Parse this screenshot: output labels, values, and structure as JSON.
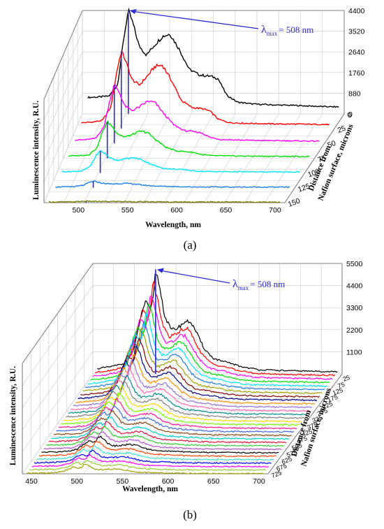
{
  "chart_data": [
    {
      "type": "line",
      "panel_label": "(a)",
      "xlabel": "Wavelength, nm",
      "ylabel": "Luminescence intensity, R.U.",
      "zlabel_line1": "Distance from",
      "zlabel_line2": "Nafion surface, microns",
      "x_ticks": [
        "500",
        "550",
        "600",
        "650",
        "700"
      ],
      "z_tick_labels": [
        "4400",
        "3520",
        "2640",
        "1760",
        "880",
        "0"
      ],
      "depth_tick_labels": [
        "0",
        "25",
        "50",
        "75",
        "100",
        "125",
        "150"
      ],
      "xlim": [
        465,
        710
      ],
      "zlim": [
        0,
        4400
      ],
      "annotation": {
        "lambda": "λ",
        "sub": "max",
        "text": "= 508 nm",
        "x": 508
      },
      "series": [
        {
          "depth": 0,
          "color": "#000000",
          "values": [
            [
              470,
              700
            ],
            [
              480,
              720
            ],
            [
              490,
              760
            ],
            [
              498,
              1250
            ],
            [
              504,
              3300
            ],
            [
              508,
              4400
            ],
            [
              512,
              3900
            ],
            [
              518,
              2900
            ],
            [
              525,
              2500
            ],
            [
              532,
              2900
            ],
            [
              540,
              3300
            ],
            [
              547,
              3400
            ],
            [
              555,
              2800
            ],
            [
              565,
              1900
            ],
            [
              575,
              1650
            ],
            [
              585,
              1600
            ],
            [
              592,
              1500
            ],
            [
              600,
              800
            ],
            [
              610,
              500
            ],
            [
              625,
              420
            ],
            [
              645,
              380
            ],
            [
              665,
              360
            ],
            [
              685,
              320
            ],
            [
              700,
              300
            ]
          ]
        },
        {
          "depth": 25,
          "color": "#ff0000",
          "values": [
            [
              470,
              250
            ],
            [
              480,
              280
            ],
            [
              490,
              350
            ],
            [
              498,
              900
            ],
            [
              504,
              2500
            ],
            [
              508,
              3300
            ],
            [
              512,
              2900
            ],
            [
              518,
              2100
            ],
            [
              525,
              1850
            ],
            [
              532,
              2200
            ],
            [
              540,
              2650
            ],
            [
              547,
              2700
            ],
            [
              555,
              2100
            ],
            [
              565,
              1200
            ],
            [
              575,
              900
            ],
            [
              585,
              850
            ],
            [
              592,
              750
            ],
            [
              600,
              400
            ],
            [
              610,
              260
            ],
            [
              625,
              230
            ],
            [
              645,
              210
            ],
            [
              665,
              200
            ],
            [
              685,
              190
            ],
            [
              700,
              180
            ]
          ]
        },
        {
          "depth": 50,
          "color": "#ff00ff",
          "values": [
            [
              470,
              150
            ],
            [
              480,
              160
            ],
            [
              490,
              220
            ],
            [
              498,
              700
            ],
            [
              504,
              1900
            ],
            [
              508,
              2500
            ],
            [
              512,
              2250
            ],
            [
              518,
              1600
            ],
            [
              525,
              1400
            ],
            [
              532,
              1550
            ],
            [
              540,
              1800
            ],
            [
              547,
              1750
            ],
            [
              555,
              1300
            ],
            [
              565,
              800
            ],
            [
              575,
              550
            ],
            [
              585,
              500
            ],
            [
              592,
              450
            ],
            [
              600,
              260
            ],
            [
              610,
              170
            ],
            [
              625,
              150
            ],
            [
              645,
              130
            ],
            [
              665,
              120
            ],
            [
              685,
              110
            ],
            [
              700,
              100
            ]
          ]
        },
        {
          "depth": 75,
          "color": "#00e000",
          "values": [
            [
              470,
              100
            ],
            [
              480,
              110
            ],
            [
              490,
              150
            ],
            [
              498,
              450
            ],
            [
              504,
              1200
            ],
            [
              508,
              1550
            ],
            [
              512,
              1400
            ],
            [
              518,
              1050
            ],
            [
              525,
              900
            ],
            [
              532,
              1000
            ],
            [
              540,
              1150
            ],
            [
              547,
              1100
            ],
            [
              555,
              800
            ],
            [
              565,
              470
            ],
            [
              575,
              320
            ],
            [
              585,
              280
            ],
            [
              592,
              250
            ],
            [
              600,
              160
            ],
            [
              610,
              110
            ],
            [
              625,
              100
            ],
            [
              645,
              90
            ],
            [
              665,
              85
            ],
            [
              685,
              80
            ],
            [
              700,
              75
            ]
          ]
        },
        {
          "depth": 100,
          "color": "#00e5ff",
          "values": [
            [
              470,
              60
            ],
            [
              480,
              65
            ],
            [
              490,
              90
            ],
            [
              498,
              280
            ],
            [
              504,
              750
            ],
            [
              508,
              950
            ],
            [
              512,
              850
            ],
            [
              518,
              630
            ],
            [
              525,
              550
            ],
            [
              532,
              600
            ],
            [
              540,
              650
            ],
            [
              547,
              600
            ],
            [
              555,
              440
            ],
            [
              565,
              260
            ],
            [
              575,
              180
            ],
            [
              585,
              160
            ],
            [
              592,
              140
            ],
            [
              600,
              90
            ],
            [
              610,
              70
            ],
            [
              625,
              60
            ],
            [
              645,
              55
            ],
            [
              665,
              50
            ],
            [
              685,
              48
            ],
            [
              700,
              45
            ]
          ]
        },
        {
          "depth": 125,
          "color": "#1e7fe0",
          "values": [
            [
              470,
              40
            ],
            [
              480,
              42
            ],
            [
              490,
              55
            ],
            [
              498,
              110
            ],
            [
              504,
              230
            ],
            [
              508,
              280
            ],
            [
              512,
              250
            ],
            [
              518,
              190
            ],
            [
              525,
              165
            ],
            [
              532,
              175
            ],
            [
              540,
              190
            ],
            [
              547,
              175
            ],
            [
              555,
              130
            ],
            [
              565,
              90
            ],
            [
              575,
              70
            ],
            [
              585,
              60
            ],
            [
              592,
              55
            ],
            [
              600,
              45
            ],
            [
              610,
              40
            ],
            [
              625,
              38
            ],
            [
              645,
              36
            ],
            [
              665,
              34
            ],
            [
              685,
              33
            ],
            [
              700,
              32
            ]
          ]
        },
        {
          "depth": 150,
          "color": "#808000",
          "values": [
            [
              470,
              30
            ],
            [
              480,
              30
            ],
            [
              490,
              32
            ],
            [
              498,
              40
            ],
            [
              504,
              55
            ],
            [
              508,
              62
            ],
            [
              512,
              58
            ],
            [
              518,
              50
            ],
            [
              525,
              46
            ],
            [
              532,
              48
            ],
            [
              540,
              50
            ],
            [
              547,
              48
            ],
            [
              555,
              42
            ],
            [
              565,
              36
            ],
            [
              575,
              34
            ],
            [
              585,
              32
            ],
            [
              592,
              31
            ],
            [
              600,
              30
            ],
            [
              610,
              30
            ],
            [
              625,
              29
            ],
            [
              645,
              29
            ],
            [
              665,
              28
            ],
            [
              685,
              28
            ],
            [
              700,
              28
            ]
          ]
        }
      ]
    },
    {
      "type": "line",
      "panel_label": "(b)",
      "xlabel": "Wavelength, nm",
      "ylabel": "Luminescence intensity, R.U.",
      "zlabel_line1": "Distance from",
      "zlabel_line2": "Nafion surface, microns",
      "x_ticks": [
        "450",
        "500",
        "550",
        "600",
        "650",
        "700"
      ],
      "z_tick_labels": [
        "5500",
        "4400",
        "3300",
        "2200",
        "1100"
      ],
      "depth_tick_labels": [
        "25",
        "75",
        "125",
        "175",
        "225",
        "275",
        "325",
        "375",
        "425",
        "475",
        "525",
        "575",
        "625",
        "675",
        "725"
      ],
      "xlim": [
        440,
        710
      ],
      "zlim": [
        0,
        5500
      ],
      "annotation": {
        "lambda": "λ",
        "sub": "max",
        "text": "= 508 nm",
        "x": 508
      },
      "peak_shape": [
        [
          445,
          0.05
        ],
        [
          460,
          0.07
        ],
        [
          475,
          0.1
        ],
        [
          485,
          0.25
        ],
        [
          492,
          0.55
        ],
        [
          497,
          0.7
        ],
        [
          502,
          0.6
        ],
        [
          505,
          0.7
        ],
        [
          508,
          1.0
        ],
        [
          512,
          0.85
        ],
        [
          518,
          0.55
        ],
        [
          525,
          0.42
        ],
        [
          532,
          0.44
        ],
        [
          540,
          0.5
        ],
        [
          546,
          0.5
        ],
        [
          552,
          0.4
        ],
        [
          560,
          0.25
        ],
        [
          570,
          0.15
        ],
        [
          580,
          0.12
        ],
        [
          590,
          0.1
        ],
        [
          600,
          0.07
        ],
        [
          620,
          0.04
        ],
        [
          650,
          0.03
        ],
        [
          680,
          0.025
        ],
        [
          705,
          0.02
        ]
      ],
      "series": [
        {
          "depth": 0,
          "color": "#000000",
          "peak": 5200
        },
        {
          "depth": 25,
          "color": "#ff0000",
          "peak": 4800
        },
        {
          "depth": 50,
          "color": "#ff00ff",
          "peak": 4450
        },
        {
          "depth": 75,
          "color": "#00e000",
          "peak": 4150
        },
        {
          "depth": 100,
          "color": "#00e5ff",
          "peak": 3850
        },
        {
          "depth": 125,
          "color": "#1e7fe0",
          "peak": 3580
        },
        {
          "depth": 150,
          "color": "#a0a000",
          "peak": 3320
        },
        {
          "depth": 175,
          "color": "#8b0000",
          "peak": 3080
        },
        {
          "depth": 200,
          "color": "#00008b",
          "peak": 2850
        },
        {
          "depth": 225,
          "color": "#ff8c00",
          "peak": 2640
        },
        {
          "depth": 250,
          "color": "#9370db",
          "peak": 2450
        },
        {
          "depth": 275,
          "color": "#ff69b4",
          "peak": 2270
        },
        {
          "depth": 300,
          "color": "#008b8b",
          "peak": 2100
        },
        {
          "depth": 325,
          "color": "#808080",
          "peak": 1950
        },
        {
          "depth": 350,
          "color": "#ffd700",
          "peak": 1800
        },
        {
          "depth": 375,
          "color": "#7cfc00",
          "peak": 1670
        },
        {
          "depth": 400,
          "color": "#ff1493",
          "peak": 1540
        },
        {
          "depth": 425,
          "color": "#4169e1",
          "peak": 1420
        },
        {
          "depth": 450,
          "color": "#8b4513",
          "peak": 1310
        },
        {
          "depth": 475,
          "color": "#00ced1",
          "peak": 1210
        },
        {
          "depth": 500,
          "color": "#dc143c",
          "peak": 1110
        },
        {
          "depth": 525,
          "color": "#32cd32",
          "peak": 1020
        },
        {
          "depth": 550,
          "color": "#ba55d3",
          "peak": 940
        },
        {
          "depth": 575,
          "color": "#000000",
          "peak": 860
        },
        {
          "depth": 600,
          "color": "#ff4500",
          "peak": 790
        },
        {
          "depth": 625,
          "color": "#40e0d0",
          "peak": 720
        },
        {
          "depth": 650,
          "color": "#0000ff",
          "peak": 660
        },
        {
          "depth": 675,
          "color": "#ff00ff",
          "peak": 600
        },
        {
          "depth": 700,
          "color": "#9acd32",
          "peak": 540
        },
        {
          "depth": 725,
          "color": "#a0a000",
          "peak": 480
        }
      ]
    }
  ]
}
